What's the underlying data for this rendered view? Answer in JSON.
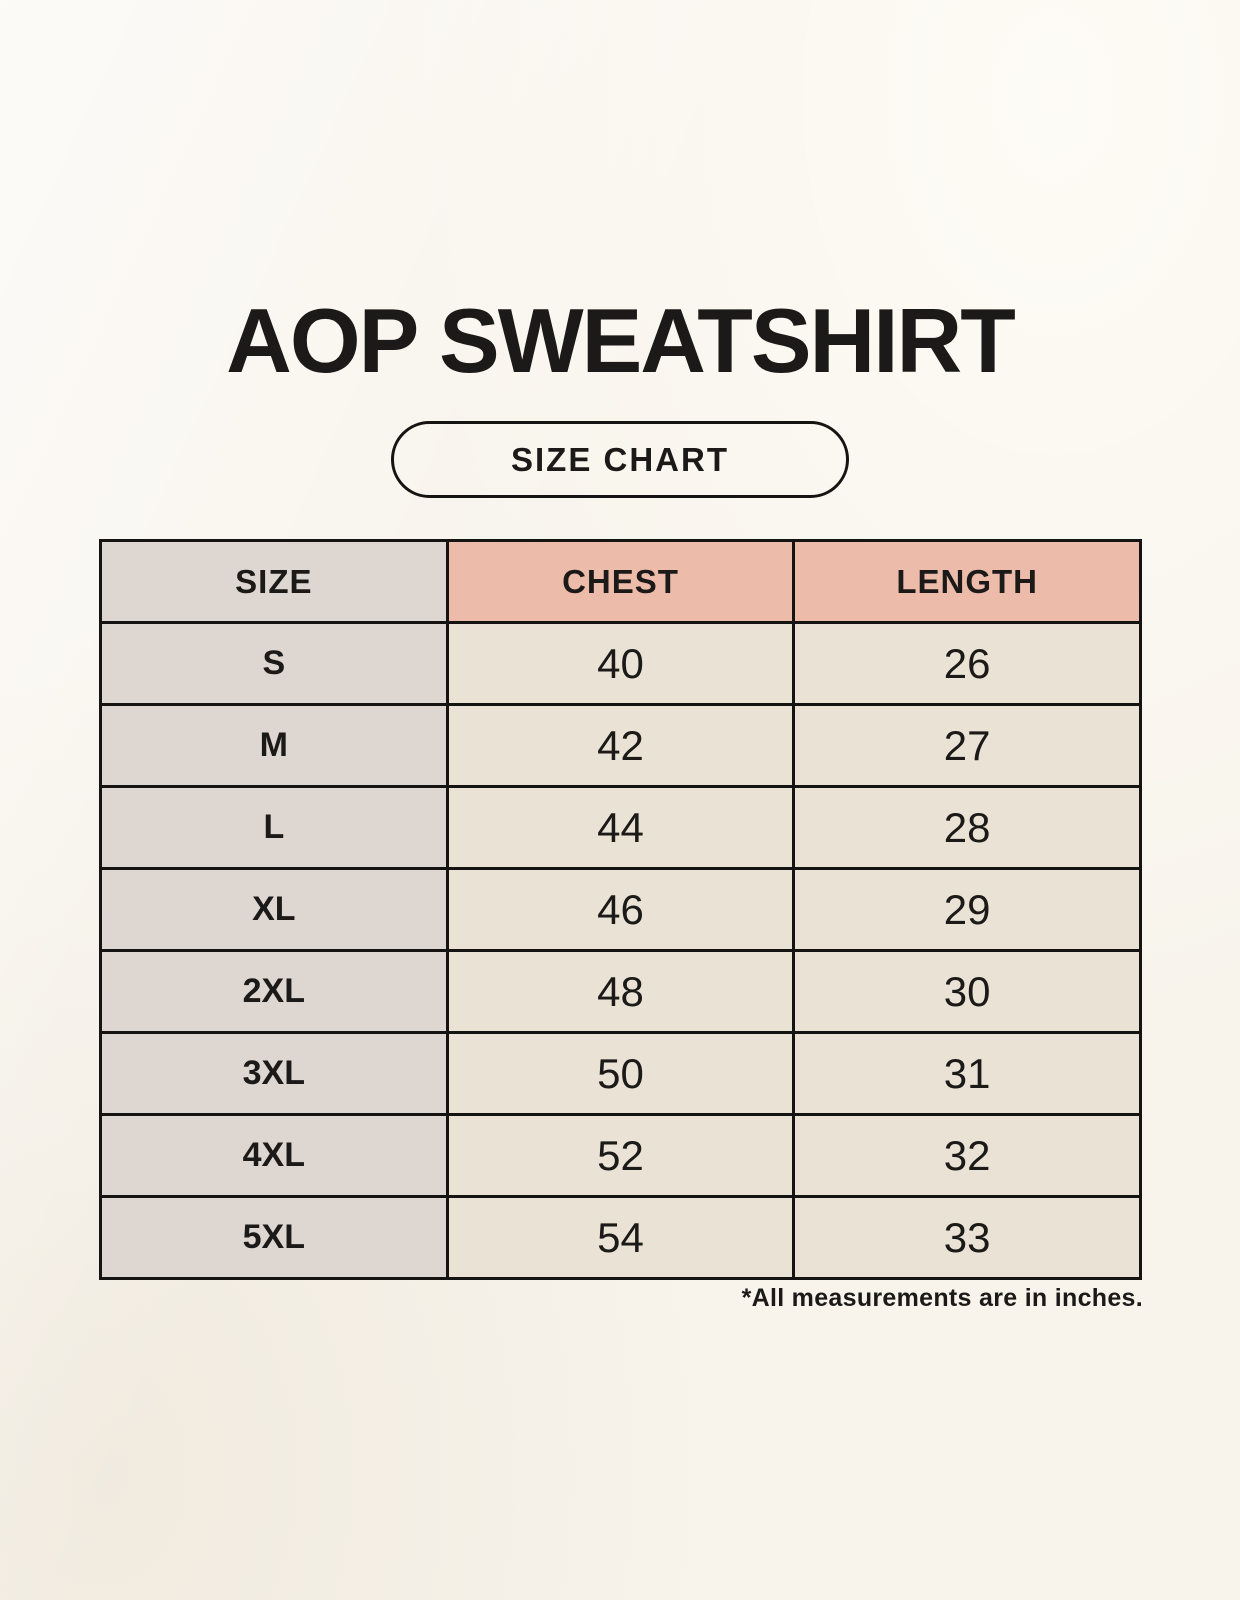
{
  "title": "AOP SWEATSHIRT",
  "badge_label": "SIZE CHART",
  "footnote": "*All measurements are in inches.",
  "colors": {
    "background": "#f8f4ec",
    "size_column_bg": "#ded7d1",
    "header_accent_bg": "#edbbaa",
    "data_cell_bg": "#e9e2d5",
    "table_border": "#161412",
    "text": "#1c1a18"
  },
  "chart_data": {
    "type": "table",
    "title": "AOP SWEATSHIRT",
    "subtitle": "SIZE CHART",
    "columns": [
      "SIZE",
      "CHEST",
      "LENGTH"
    ],
    "rows": [
      [
        "S",
        40,
        26
      ],
      [
        "M",
        42,
        27
      ],
      [
        "L",
        44,
        28
      ],
      [
        "XL",
        46,
        29
      ],
      [
        "2XL",
        48,
        30
      ],
      [
        "3XL",
        50,
        31
      ],
      [
        "4XL",
        52,
        32
      ],
      [
        "5XL",
        54,
        33
      ]
    ],
    "units": "inches",
    "note": "*All measurements are in inches."
  }
}
